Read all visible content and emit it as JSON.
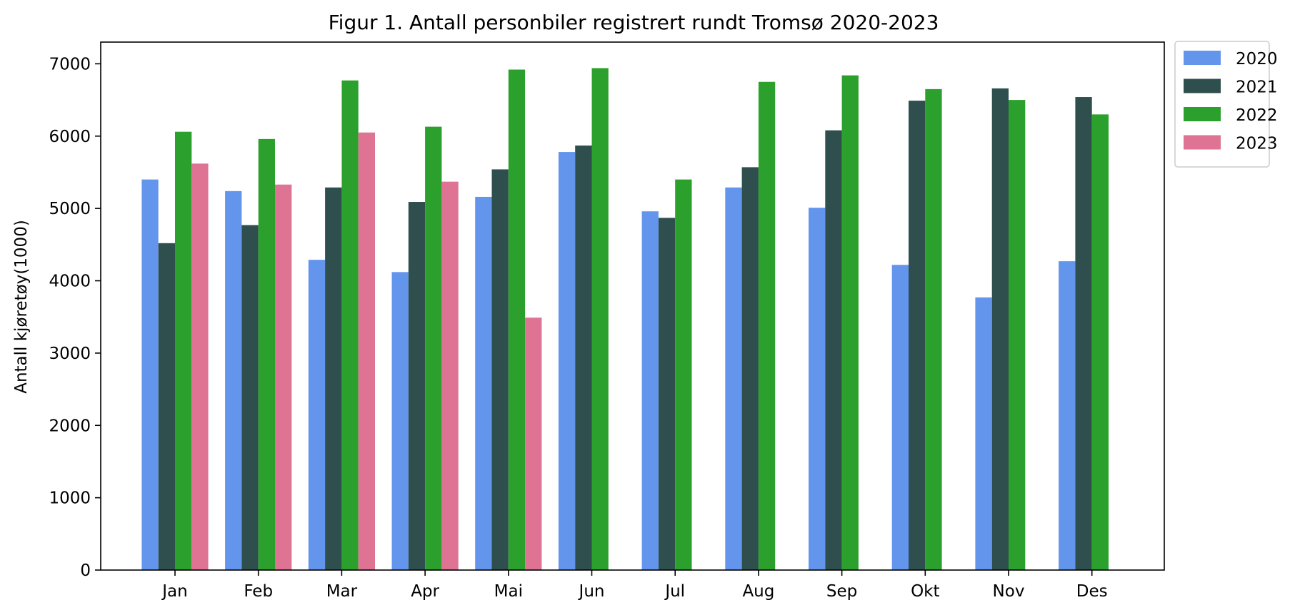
{
  "chart_data": {
    "type": "bar",
    "title": "Figur 1. Antall personbiler registrert rundt Tromsø 2020-2023",
    "xlabel": "",
    "ylabel": "Antall kjøretøy(1000)",
    "ylim": [
      0,
      7300
    ],
    "yticks": [
      0,
      1000,
      2000,
      3000,
      4000,
      5000,
      6000,
      7000
    ],
    "categories": [
      "Jan",
      "Feb",
      "Mar",
      "Apr",
      "Mai",
      "Jun",
      "Jul",
      "Aug",
      "Sep",
      "Okt",
      "Nov",
      "Des"
    ],
    "legend_position": "outside-top-right",
    "grid": false,
    "series": [
      {
        "name": "2020",
        "color": "#6495ED",
        "values": [
          5400,
          5240,
          4290,
          4120,
          5160,
          5780,
          4960,
          5290,
          5010,
          4220,
          3770,
          4270
        ]
      },
      {
        "name": "2021",
        "color": "#2F4F4F",
        "values": [
          4520,
          4770,
          5290,
          5090,
          5540,
          5870,
          4870,
          5570,
          6080,
          6490,
          6660,
          6540
        ]
      },
      {
        "name": "2022",
        "color": "#2CA02C",
        "values": [
          6060,
          5960,
          6770,
          6130,
          6920,
          6940,
          5400,
          6750,
          6840,
          6650,
          6500,
          6300
        ]
      },
      {
        "name": "2023",
        "color": "#DE7393",
        "values": [
          5620,
          5330,
          6050,
          5370,
          3490,
          null,
          null,
          null,
          null,
          null,
          null,
          null
        ]
      }
    ]
  }
}
